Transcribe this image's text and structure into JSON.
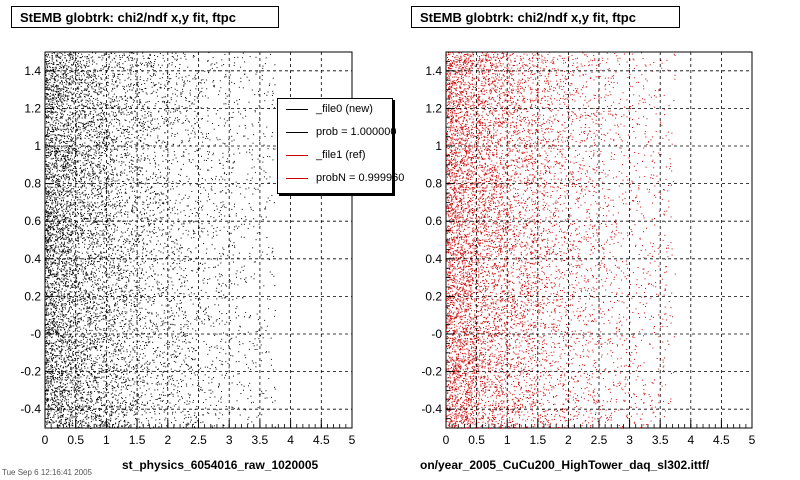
{
  "panels": [
    {
      "title": "StEMB globtrk: chi2/ndf x,y fit, ftpc",
      "run_label": "st_physics_6054016_raw_1020005",
      "color": "#000000"
    },
    {
      "title": "StEMB globtrk: chi2/ndf x,y fit, ftpc",
      "run_label": "on/year_2005_CuCu200_HighTower_daq_sl302.ittf/",
      "color": "#cc0000"
    }
  ],
  "legend": {
    "entries": [
      {
        "label": "_file0 (new)",
        "color": "#000000"
      },
      {
        "label": "prob = 1.000000",
        "color": "#000000"
      },
      {
        "label": "_file1 (ref)",
        "color": "#cc0000"
      },
      {
        "label": "probN = 0.999960",
        "color": "#cc0000"
      }
    ]
  },
  "footer_stamp": "Tue Sep 6 12:16:41 2005",
  "chart_data": [
    {
      "type": "scatter",
      "title": "StEMB globtrk: chi2/ndf x,y fit, ftpc",
      "xlabel": "",
      "ylabel": "",
      "xlim": [
        0,
        5
      ],
      "ylim": [
        -0.5,
        1.5
      ],
      "x_ticks": [
        "0",
        "0.5",
        "1",
        "1.5",
        "2",
        "2.5",
        "3",
        "3.5",
        "4",
        "4.5",
        "5"
      ],
      "y_ticks": [
        "-0.4",
        "-0.2",
        "-0",
        "0.2",
        "0.4",
        "0.6",
        "0.8",
        "1",
        "1.2",
        "1.4"
      ],
      "grid": true,
      "series": [
        {
          "name": "_file0 (new)",
          "color": "#000000",
          "distribution": "dense near x=0, falling off toward x=5, uniform in y from -0.5 to 1.5",
          "approx_points": 9000
        }
      ]
    },
    {
      "type": "scatter",
      "title": "StEMB globtrk: chi2/ndf x,y fit, ftpc",
      "xlabel": "",
      "ylabel": "",
      "xlim": [
        0,
        5
      ],
      "ylim": [
        -0.5,
        1.5
      ],
      "x_ticks": [
        "0",
        "0.5",
        "1",
        "1.5",
        "2",
        "2.5",
        "3",
        "3.5",
        "4",
        "4.5",
        "5"
      ],
      "y_ticks": [
        "-0.4",
        "-0.2",
        "-0",
        "0.2",
        "0.4",
        "0.6",
        "0.8",
        "1",
        "1.2",
        "1.4"
      ],
      "grid": true,
      "series": [
        {
          "name": "_file1 (ref)",
          "color": "#cc0000",
          "distribution": "dense near x=0, falling off toward x=5, uniform in y from -0.5 to 1.5",
          "approx_points": 9000
        }
      ]
    }
  ]
}
